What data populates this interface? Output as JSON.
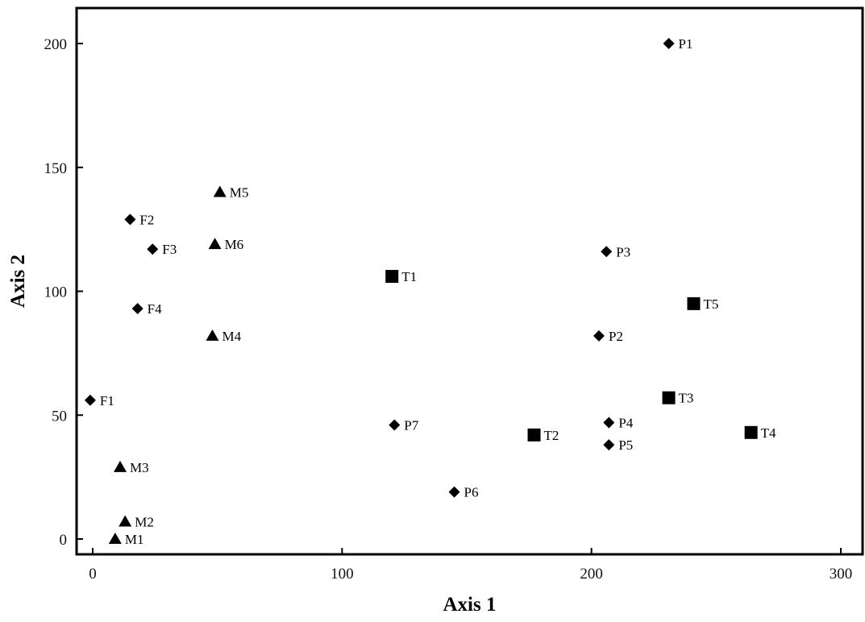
{
  "chart_data": {
    "type": "scatter",
    "title": "",
    "xlabel": "Axis 1",
    "ylabel": "Axis 2",
    "xlim": [
      -6,
      310
    ],
    "ylim": [
      -6,
      215
    ],
    "xticks": [
      0,
      100,
      200,
      300
    ],
    "yticks": [
      0,
      50,
      100,
      150,
      200
    ],
    "grid": false,
    "legend": "none",
    "series": [
      {
        "marker": "diamond",
        "points": [
          {
            "label": "F1",
            "x": -1,
            "y": 56
          },
          {
            "label": "F2",
            "x": 15,
            "y": 129
          },
          {
            "label": "F3",
            "x": 24,
            "y": 117
          },
          {
            "label": "F4",
            "x": 18,
            "y": 93
          }
        ]
      },
      {
        "marker": "triangle",
        "points": [
          {
            "label": "M1",
            "x": 9,
            "y": 0
          },
          {
            "label": "M2",
            "x": 13,
            "y": 7
          },
          {
            "label": "M3",
            "x": 11,
            "y": 29
          },
          {
            "label": "M4",
            "x": 48,
            "y": 82
          },
          {
            "label": "M5",
            "x": 51,
            "y": 140
          },
          {
            "label": "M6",
            "x": 49,
            "y": 119
          }
        ]
      },
      {
        "marker": "square",
        "points": [
          {
            "label": "T1",
            "x": 120,
            "y": 106
          },
          {
            "label": "T2",
            "x": 177,
            "y": 42
          },
          {
            "label": "T3",
            "x": 231,
            "y": 57
          },
          {
            "label": "T4",
            "x": 264,
            "y": 43
          },
          {
            "label": "T5",
            "x": 241,
            "y": 95
          }
        ]
      },
      {
        "marker": "diamond",
        "points": [
          {
            "label": "P1",
            "x": 231,
            "y": 200
          },
          {
            "label": "P2",
            "x": 203,
            "y": 82
          },
          {
            "label": "P3",
            "x": 206,
            "y": 116
          },
          {
            "label": "P4",
            "x": 207,
            "y": 47
          },
          {
            "label": "P5",
            "x": 207,
            "y": 38
          },
          {
            "label": "P6",
            "x": 145,
            "y": 19
          },
          {
            "label": "P7",
            "x": 121,
            "y": 46
          }
        ]
      }
    ]
  }
}
